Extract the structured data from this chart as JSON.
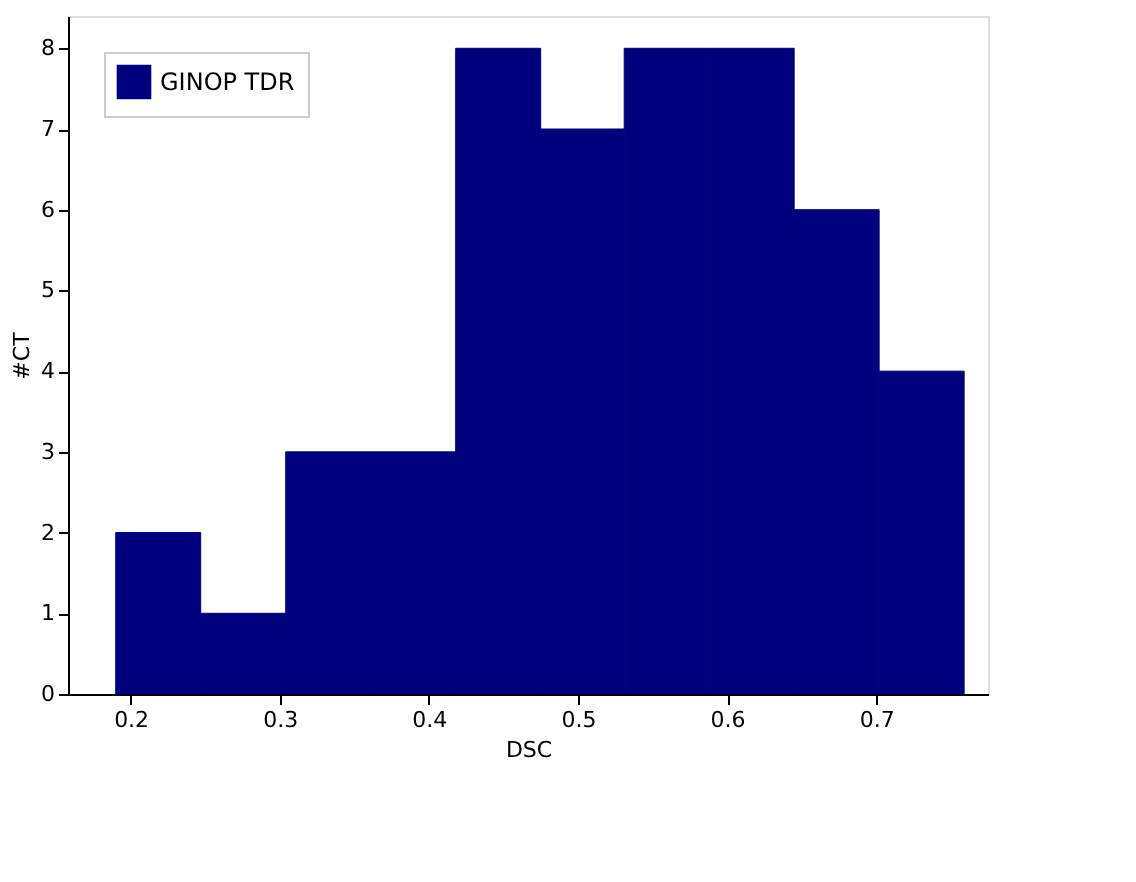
{
  "chart_data": {
    "type": "histogram",
    "xlabel": "DSC",
    "ylabel": "#CT",
    "bins": [
      0.19,
      0.247,
      0.304,
      0.361,
      0.418,
      0.475,
      0.531,
      0.588,
      0.645,
      0.702,
      0.759
    ],
    "series": [
      {
        "name": "GINOP TDR",
        "color": "#00007f",
        "values": [
          2,
          1,
          3,
          3,
          8,
          7,
          8,
          8,
          6,
          4
        ]
      }
    ],
    "xlim": [
      0.158,
      0.775
    ],
    "xticks": [
      0.2,
      0.3,
      0.4,
      0.5,
      0.6,
      0.7
    ],
    "ylim": [
      0,
      8.4
    ],
    "yticks": [
      0,
      1,
      2,
      3,
      4,
      5,
      6,
      7,
      8
    ],
    "grid": false,
    "legend": "top left"
  }
}
